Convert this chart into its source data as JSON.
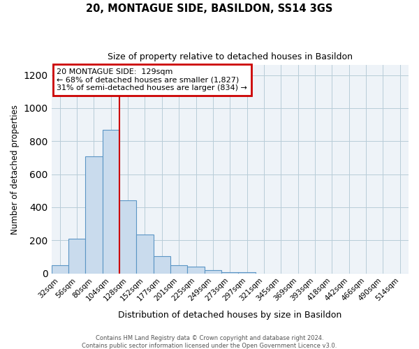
{
  "title": "20, MONTAGUE SIDE, BASILDON, SS14 3GS",
  "subtitle": "Size of property relative to detached houses in Basildon",
  "xlabel": "Distribution of detached houses by size in Basildon",
  "ylabel": "Number of detached properties",
  "bin_labels": [
    "32sqm",
    "56sqm",
    "80sqm",
    "104sqm",
    "128sqm",
    "152sqm",
    "177sqm",
    "201sqm",
    "225sqm",
    "249sqm",
    "273sqm",
    "297sqm",
    "321sqm",
    "345sqm",
    "369sqm",
    "393sqm",
    "418sqm",
    "442sqm",
    "466sqm",
    "490sqm",
    "514sqm"
  ],
  "bin_values": [
    50,
    210,
    710,
    870,
    440,
    235,
    105,
    50,
    40,
    18,
    8,
    5,
    0,
    0,
    0,
    0,
    0,
    0,
    0,
    0,
    0
  ],
  "bar_color": "#c9dbed",
  "bar_edge_color": "#5b95c5",
  "property_line_index": 4,
  "property_line_color": "#cc0000",
  "annotation_line1": "20 MONTAGUE SIDE:  129sqm",
  "annotation_line2": "← 68% of detached houses are smaller (1,827)",
  "annotation_line3": "31% of semi-detached houses are larger (834) →",
  "annotation_box_color": "#cc0000",
  "ylim": [
    0,
    1260
  ],
  "yticks": [
    0,
    200,
    400,
    600,
    800,
    1000,
    1200
  ],
  "footer_line1": "Contains HM Land Registry data © Crown copyright and database right 2024.",
  "footer_line2": "Contains public sector information licensed under the Open Government Licence v3.0.",
  "background_color": "#eef3f8",
  "title_fontsize": 10.5,
  "subtitle_fontsize": 9
}
